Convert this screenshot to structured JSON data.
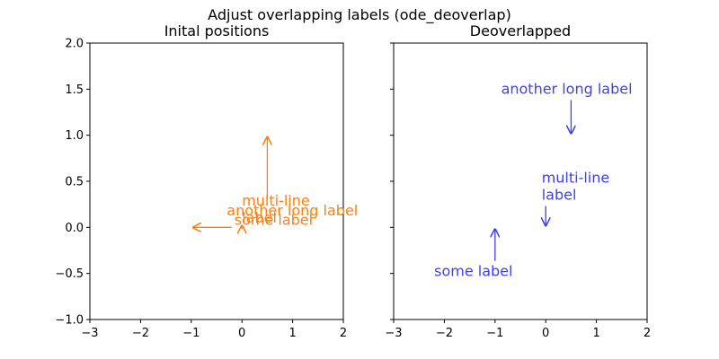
{
  "figure": {
    "suptitle": "Adjust overlapping labels (ode_deoverlap)"
  },
  "chart_data": [
    {
      "type": "scatter",
      "title": "Inital positions",
      "xlabel": "",
      "ylabel": "",
      "xlim": [
        -3,
        2
      ],
      "ylim": [
        -1,
        2
      ],
      "xticks": [
        "−3",
        "−2",
        "−1",
        "0",
        "1",
        "2"
      ],
      "yticks": [
        "−1.0",
        "−0.5",
        "0.0",
        "0.5",
        "1.0",
        "1.5",
        "2.0"
      ],
      "show_ytick_labels": true,
      "color": "#ff7f0e",
      "annotations": [
        {
          "text": "some label",
          "lines": [
            "some label"
          ],
          "point": [
            -1.0,
            0.0
          ],
          "text_pos": [
            -0.15,
            0.03
          ]
        },
        {
          "text": "another long label",
          "lines": [
            "another long label"
          ],
          "point": [
            0.5,
            1.0
          ],
          "text_pos": [
            -0.3,
            0.13
          ]
        },
        {
          "text": "multi-line\nlabel",
          "lines": [
            "multi-line",
            "label"
          ],
          "point": [
            0.0,
            0.0
          ],
          "text_pos": [
            0.0,
            0.05
          ]
        }
      ]
    },
    {
      "type": "scatter",
      "title": "Deoverlapped",
      "xlabel": "",
      "ylabel": "",
      "xlim": [
        -3,
        2
      ],
      "ylim": [
        -1,
        2
      ],
      "xticks": [
        "−3",
        "−2",
        "−1",
        "0",
        "1",
        "2"
      ],
      "yticks": [
        "−1.0",
        "−0.5",
        "0.0",
        "0.5",
        "1.0",
        "1.5",
        "2.0"
      ],
      "show_ytick_labels": false,
      "color": "#4040f0",
      "annotations": [
        {
          "text": "some label",
          "lines": [
            "some label"
          ],
          "point": [
            -1.0,
            0.0
          ],
          "text_pos": [
            -2.2,
            -0.53
          ]
        },
        {
          "text": "another long label",
          "lines": [
            "another long label"
          ],
          "point": [
            0.5,
            1.0
          ],
          "text_pos": [
            -0.88,
            1.45
          ]
        },
        {
          "text": "multi-line\nlabel",
          "lines": [
            "multi-line",
            "label"
          ],
          "point": [
            0.0,
            0.0
          ],
          "text_pos": [
            -0.08,
            0.3
          ]
        }
      ]
    }
  ]
}
